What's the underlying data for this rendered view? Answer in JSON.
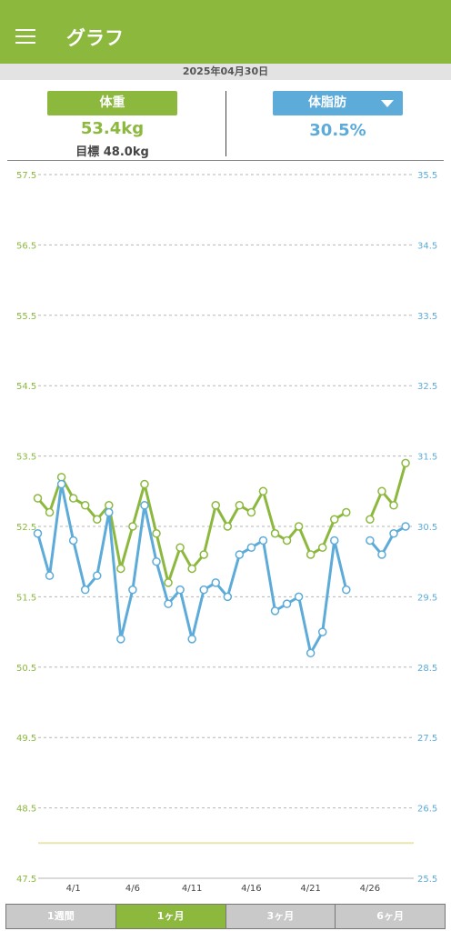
{
  "appbar": {
    "title": "グラフ",
    "menu_icon": "hamburger-menu-icon"
  },
  "date": "2025年04月30日",
  "weight": {
    "button_label": "体重",
    "value": "53.4kg",
    "goal": "目標 48.0kg"
  },
  "body_fat": {
    "button_label": "体脂肪",
    "value": "30.5%",
    "dropdown_icon": "caret-down-icon"
  },
  "period_tabs": [
    {
      "label": "1週間",
      "active": false
    },
    {
      "label": "1ヶ月",
      "active": true
    },
    {
      "label": "3ヶ月",
      "active": false
    },
    {
      "label": "6ヶ月",
      "active": false
    }
  ],
  "colors": {
    "accent_green": "#8cb83e",
    "accent_blue": "#5dabd9",
    "date_bar": "#e3e3e3",
    "goal_line": "#e8e6b0"
  },
  "chart_data": {
    "type": "line",
    "x": [
      "3/29",
      "3/30",
      "3/31",
      "4/1",
      "4/2",
      "4/3",
      "4/4",
      "4/5",
      "4/6",
      "4/7",
      "4/8",
      "4/9",
      "4/10",
      "4/11",
      "4/12",
      "4/13",
      "4/14",
      "4/15",
      "4/16",
      "4/17",
      "4/18",
      "4/19",
      "4/20",
      "4/21",
      "4/22",
      "4/23",
      "4/24",
      "4/25",
      "4/26",
      "4/27",
      "4/28",
      "4/29",
      "4/30"
    ],
    "x_tick_labels": [
      "4/1",
      "4/6",
      "4/11",
      "4/16",
      "4/21",
      "4/26"
    ],
    "x_tick_dates": [
      "4/1",
      "4/6",
      "4/11",
      "4/16",
      "4/21",
      "4/26"
    ],
    "series": [
      {
        "name": "体重",
        "axis": "left",
        "color": "#8cb83e",
        "values": [
          52.9,
          52.7,
          53.2,
          52.9,
          52.8,
          52.6,
          52.8,
          51.9,
          52.5,
          53.1,
          52.4,
          51.7,
          52.2,
          51.9,
          52.1,
          52.8,
          52.5,
          52.8,
          52.7,
          53.0,
          52.4,
          52.3,
          52.5,
          52.1,
          52.2,
          52.6,
          52.7,
          null,
          52.6,
          53.0,
          52.8,
          53.4,
          null
        ]
      },
      {
        "name": "体脂肪",
        "axis": "right",
        "color": "#5dabd9",
        "values": [
          30.4,
          29.8,
          31.1,
          30.3,
          29.6,
          29.8,
          30.7,
          28.9,
          29.6,
          30.8,
          30.0,
          29.4,
          29.6,
          28.9,
          29.6,
          29.7,
          29.5,
          30.1,
          30.2,
          30.3,
          29.3,
          29.4,
          29.5,
          28.7,
          29.0,
          30.3,
          29.6,
          null,
          30.3,
          30.1,
          30.4,
          30.5,
          null
        ]
      }
    ],
    "left_axis": {
      "ylim": [
        47.5,
        57.5
      ],
      "ticks": [
        "57.5",
        "56.5",
        "55.5",
        "54.5",
        "53.5",
        "52.5",
        "51.5",
        "50.5",
        "49.5",
        "48.5",
        "47.5"
      ]
    },
    "right_axis": {
      "ylim": [
        25.5,
        35.5
      ],
      "ticks": [
        "35.5",
        "34.5",
        "33.5",
        "32.5",
        "31.5",
        "30.5",
        "29.5",
        "28.5",
        "27.5",
        "26.5",
        "25.5"
      ]
    },
    "goal_weight": 48.0,
    "grid": true
  }
}
